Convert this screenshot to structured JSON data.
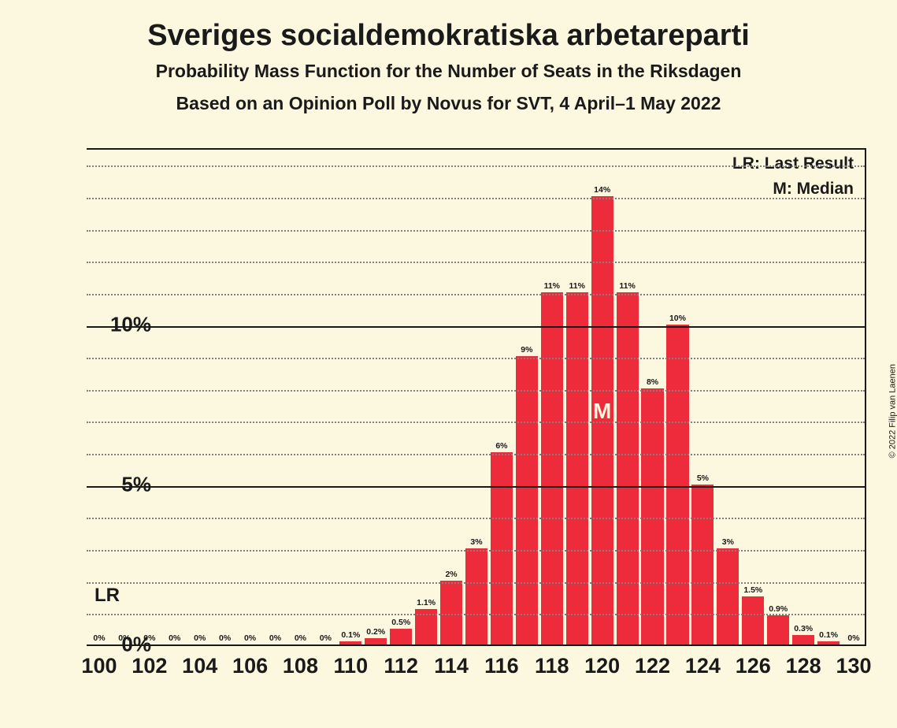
{
  "title": "Sveriges socialdemokratiska arbetareparti",
  "subtitle1": "Probability Mass Function for the Number of Seats in the Riksdagen",
  "subtitle2": "Based on an Opinion Poll by Novus for SVT, 4 April–1 May 2022",
  "copyright": "© 2022 Filip van Laenen",
  "legend": {
    "lr": "LR: Last Result",
    "m": "M: Median"
  },
  "lr_label": "LR",
  "median_marker": "M",
  "chart": {
    "type": "bar-histogram",
    "background_color": "#fcf7df",
    "bar_color": "#ee2b3a",
    "text_color": "#1a1a1a",
    "median_text_color": "#fcf7df",
    "grid_major_color": "#1a1a1a",
    "grid_minor_color": "#808080",
    "title_fontsize": 38,
    "subtitle_fontsize": 23,
    "ytick_fontsize": 26,
    "xtick_fontsize": 27,
    "legend_fontsize": 21,
    "barlabel_fontsize": 10.5,
    "median_fontsize": 28,
    "lr_fontsize": 24,
    "ymax": 15.5,
    "y_major_ticks": [
      0,
      5,
      10
    ],
    "y_minor_ticks": [
      1,
      2,
      3,
      4,
      6,
      7,
      8,
      9,
      11,
      12,
      13,
      14,
      15
    ],
    "y_tick_labels": {
      "0": "0%",
      "5": "5%",
      "10": "10%"
    },
    "x_range": [
      100,
      130
    ],
    "x_tick_step": 2,
    "bar_width_ratio": 0.88,
    "lr_position": 100,
    "median_position": 120,
    "bars": [
      {
        "x": 100,
        "v": 0,
        "label": "0%"
      },
      {
        "x": 101,
        "v": 0,
        "label": "0%"
      },
      {
        "x": 102,
        "v": 0,
        "label": "0%"
      },
      {
        "x": 103,
        "v": 0,
        "label": "0%"
      },
      {
        "x": 104,
        "v": 0,
        "label": "0%"
      },
      {
        "x": 105,
        "v": 0,
        "label": "0%"
      },
      {
        "x": 106,
        "v": 0,
        "label": "0%"
      },
      {
        "x": 107,
        "v": 0,
        "label": "0%"
      },
      {
        "x": 108,
        "v": 0,
        "label": "0%"
      },
      {
        "x": 109,
        "v": 0,
        "label": "0%"
      },
      {
        "x": 110,
        "v": 0.1,
        "label": "0.1%"
      },
      {
        "x": 111,
        "v": 0.2,
        "label": "0.2%"
      },
      {
        "x": 112,
        "v": 0.5,
        "label": "0.5%"
      },
      {
        "x": 113,
        "v": 1.1,
        "label": "1.1%"
      },
      {
        "x": 114,
        "v": 2,
        "label": "2%"
      },
      {
        "x": 115,
        "v": 3,
        "label": "3%"
      },
      {
        "x": 116,
        "v": 6,
        "label": "6%"
      },
      {
        "x": 117,
        "v": 9,
        "label": "9%"
      },
      {
        "x": 118,
        "v": 11,
        "label": "11%"
      },
      {
        "x": 119,
        "v": 11,
        "label": "11%"
      },
      {
        "x": 120,
        "v": 14,
        "label": "14%"
      },
      {
        "x": 121,
        "v": 11,
        "label": "11%"
      },
      {
        "x": 122,
        "v": 8,
        "label": "8%"
      },
      {
        "x": 123,
        "v": 10,
        "label": "10%"
      },
      {
        "x": 124,
        "v": 5,
        "label": "5%"
      },
      {
        "x": 125,
        "v": 3,
        "label": "3%"
      },
      {
        "x": 126,
        "v": 1.5,
        "label": "1.5%"
      },
      {
        "x": 127,
        "v": 0.9,
        "label": "0.9%"
      },
      {
        "x": 128,
        "v": 0.3,
        "label": "0.3%"
      },
      {
        "x": 129,
        "v": 0.1,
        "label": "0.1%"
      },
      {
        "x": 130,
        "v": 0,
        "label": "0%"
      }
    ]
  }
}
